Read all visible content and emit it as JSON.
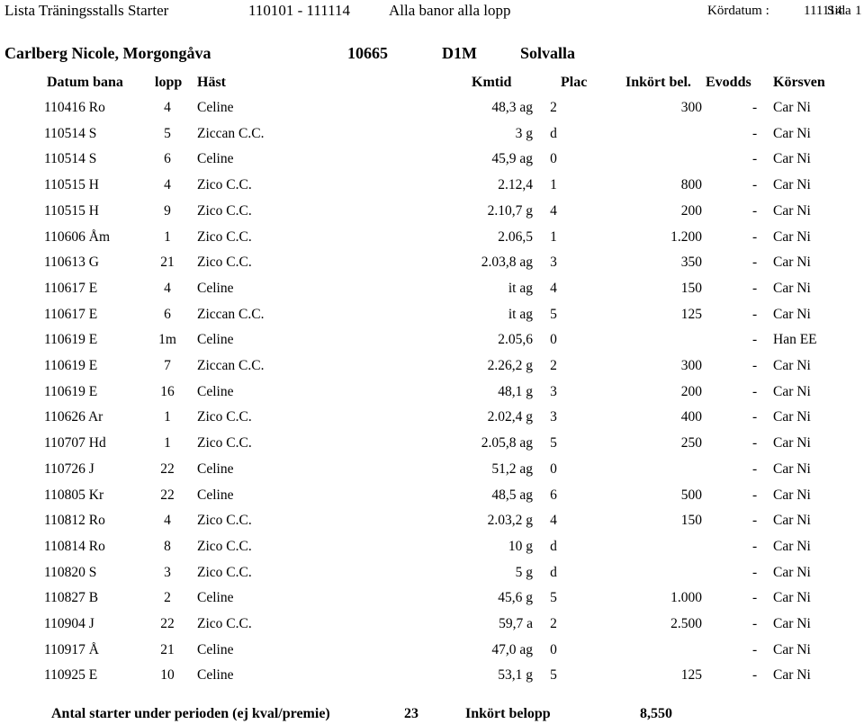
{
  "header": {
    "title": "Lista Träningsstalls Starter",
    "period": "110101 - 111114",
    "scope": "Alla banor alla lopp",
    "kordatum_label": "Kördatum :",
    "kordatum_value": "111114",
    "sida_label": "Sida",
    "sida_value": "1"
  },
  "trainer": {
    "name": "Carlberg Nicole, Morgongåva",
    "id": "10665",
    "license": "D1M",
    "track": "Solvalla"
  },
  "columns": {
    "datum_bana": "Datum bana",
    "lopp": "lopp",
    "hast": "Häst",
    "kmtid": "Kmtid",
    "plac": "Plac",
    "inkort": "Inkört bel.",
    "evodds": "Evodds",
    "korsven": "Körsven"
  },
  "rows": [
    {
      "datum": "110416 Ro",
      "lopp": "4",
      "hast": "Celine",
      "kmtid": "48,3 ag",
      "plac": "2",
      "inkort": "300",
      "dash": "-",
      "korsven": "Car Ni"
    },
    {
      "datum": "110514 S",
      "lopp": "5",
      "hast": "Ziccan C.C.",
      "kmtid": "3 g",
      "plac": "d",
      "inkort": "",
      "dash": "-",
      "korsven": "Car Ni"
    },
    {
      "datum": "110514 S",
      "lopp": "6",
      "hast": "Celine",
      "kmtid": "45,9 ag",
      "plac": "0",
      "inkort": "",
      "dash": "-",
      "korsven": "Car Ni"
    },
    {
      "datum": "110515 H",
      "lopp": "4",
      "hast": "Zico C.C.",
      "kmtid": "2.12,4",
      "plac": "1",
      "inkort": "800",
      "dash": "-",
      "korsven": "Car Ni"
    },
    {
      "datum": "110515 H",
      "lopp": "9",
      "hast": "Zico C.C.",
      "kmtid": "2.10,7 g",
      "plac": "4",
      "inkort": "200",
      "dash": "-",
      "korsven": "Car Ni"
    },
    {
      "datum": "110606 Åm",
      "lopp": "1",
      "hast": "Zico C.C.",
      "kmtid": "2.06,5",
      "plac": "1",
      "inkort": "1.200",
      "dash": "-",
      "korsven": "Car Ni"
    },
    {
      "datum": "110613 G",
      "lopp": "21",
      "hast": "Zico C.C.",
      "kmtid": "2.03,8 ag",
      "plac": "3",
      "inkort": "350",
      "dash": "-",
      "korsven": "Car Ni"
    },
    {
      "datum": "110617 E",
      "lopp": "4",
      "hast": "Celine",
      "kmtid": "it ag",
      "plac": "4",
      "inkort": "150",
      "dash": "-",
      "korsven": "Car Ni"
    },
    {
      "datum": "110617 E",
      "lopp": "6",
      "hast": "Ziccan C.C.",
      "kmtid": "it ag",
      "plac": "5",
      "inkort": "125",
      "dash": "-",
      "korsven": "Car Ni"
    },
    {
      "datum": "110619 E",
      "lopp": "1m",
      "hast": "Celine",
      "kmtid": "2.05,6",
      "plac": "0",
      "inkort": "",
      "dash": "-",
      "korsven": "Han EE"
    },
    {
      "datum": "110619 E",
      "lopp": "7",
      "hast": "Ziccan C.C.",
      "kmtid": "2.26,2 g",
      "plac": "2",
      "inkort": "300",
      "dash": "-",
      "korsven": "Car Ni"
    },
    {
      "datum": "110619 E",
      "lopp": "16",
      "hast": "Celine",
      "kmtid": "48,1 g",
      "plac": "3",
      "inkort": "200",
      "dash": "-",
      "korsven": "Car Ni"
    },
    {
      "datum": "110626 Ar",
      "lopp": "1",
      "hast": "Zico C.C.",
      "kmtid": "2.02,4 g",
      "plac": "3",
      "inkort": "400",
      "dash": "-",
      "korsven": "Car Ni"
    },
    {
      "datum": "110707 Hd",
      "lopp": "1",
      "hast": "Zico C.C.",
      "kmtid": "2.05,8 ag",
      "plac": "5",
      "inkort": "250",
      "dash": "-",
      "korsven": "Car Ni"
    },
    {
      "datum": "110726 J",
      "lopp": "22",
      "hast": "Celine",
      "kmtid": "51,2 ag",
      "plac": "0",
      "inkort": "",
      "dash": "-",
      "korsven": "Car Ni"
    },
    {
      "datum": "110805 Kr",
      "lopp": "22",
      "hast": "Celine",
      "kmtid": "48,5 ag",
      "plac": "6",
      "inkort": "500",
      "dash": "-",
      "korsven": "Car Ni"
    },
    {
      "datum": "110812 Ro",
      "lopp": "4",
      "hast": "Zico C.C.",
      "kmtid": "2.03,2 g",
      "plac": "4",
      "inkort": "150",
      "dash": "-",
      "korsven": "Car Ni"
    },
    {
      "datum": "110814 Ro",
      "lopp": "8",
      "hast": "Zico C.C.",
      "kmtid": "10 g",
      "plac": "d",
      "inkort": "",
      "dash": "-",
      "korsven": "Car Ni"
    },
    {
      "datum": "110820 S",
      "lopp": "3",
      "hast": "Zico C.C.",
      "kmtid": "5 g",
      "plac": "d",
      "inkort": "",
      "dash": "-",
      "korsven": "Car Ni"
    },
    {
      "datum": "110827 B",
      "lopp": "2",
      "hast": "Celine",
      "kmtid": "45,6 g",
      "plac": "5",
      "inkort": "1.000",
      "dash": "-",
      "korsven": "Car Ni"
    },
    {
      "datum": "110904 J",
      "lopp": "22",
      "hast": "Zico C.C.",
      "kmtid": "59,7 a",
      "plac": "2",
      "inkort": "2.500",
      "dash": "-",
      "korsven": "Car Ni"
    },
    {
      "datum": "110917 Å",
      "lopp": "21",
      "hast": "Celine",
      "kmtid": "47,0 ag",
      "plac": "0",
      "inkort": "",
      "dash": "-",
      "korsven": "Car Ni"
    },
    {
      "datum": "110925 E",
      "lopp": "10",
      "hast": "Celine",
      "kmtid": "53,1 g",
      "plac": "5",
      "inkort": "125",
      "dash": "-",
      "korsven": "Car Ni"
    }
  ],
  "footer": {
    "label": "Antal starter under perioden (ej kval/premie)",
    "count": "23",
    "belopp_label": "Inkört belopp",
    "belopp": "8,550"
  }
}
